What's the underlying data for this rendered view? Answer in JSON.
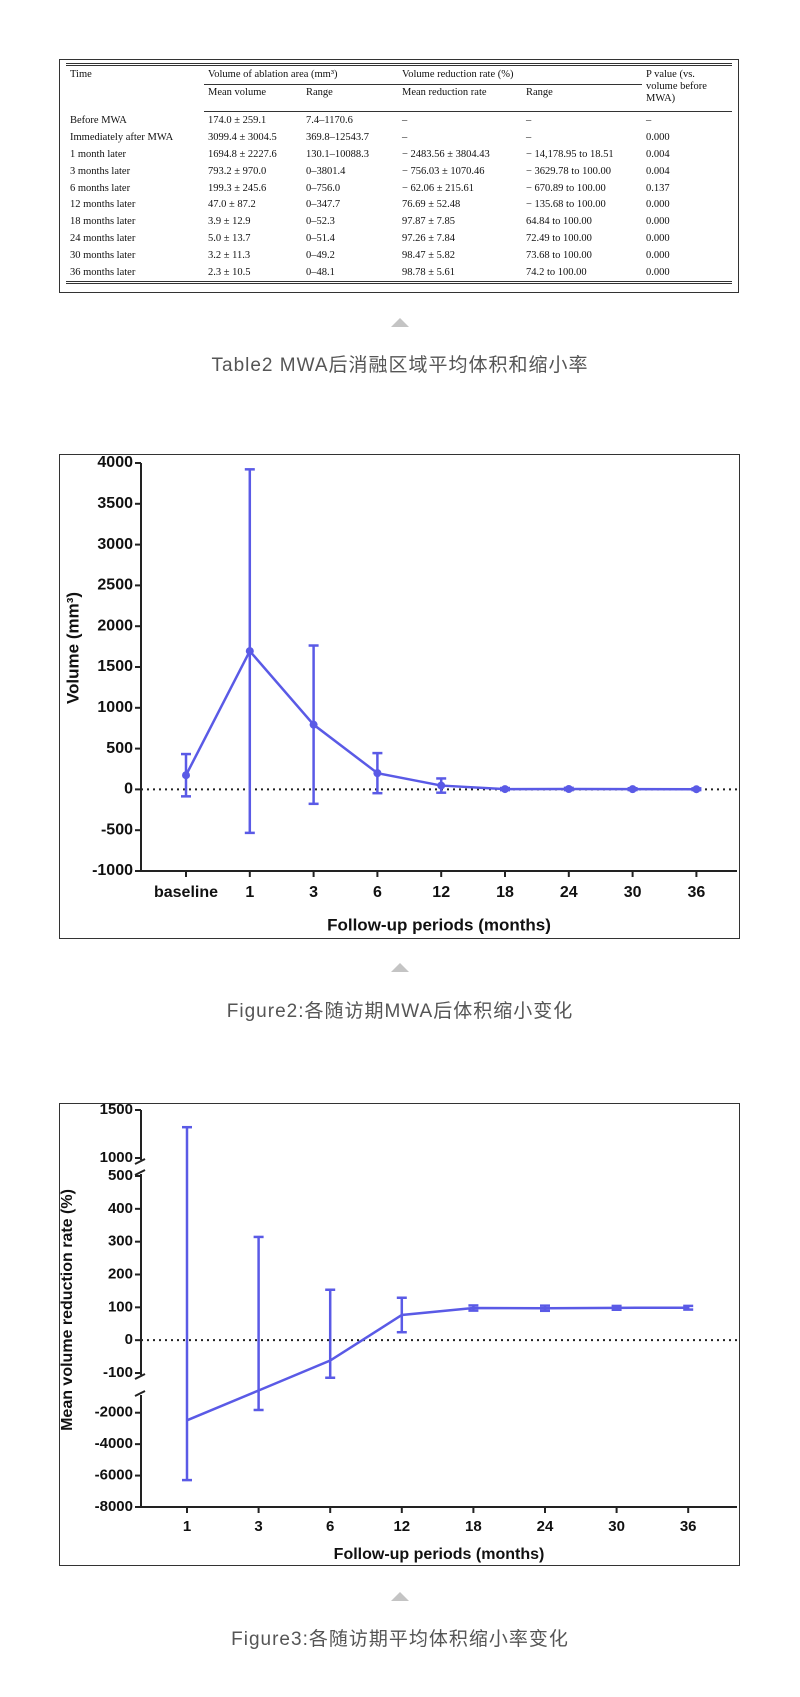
{
  "table": {
    "header": {
      "time": "Time",
      "volume_group": "Volume of ablation area (mm³)",
      "rate_group": "Volume reduction rate (%)",
      "p_value": "P value (vs. volume before MWA)"
    },
    "subheaders": [
      "Mean volume",
      "Range",
      "Mean reduction rate",
      "Range"
    ],
    "rows": [
      [
        "Before MWA",
        "174.0 ± 259.1",
        "7.4–1170.6",
        "–",
        "–",
        "–"
      ],
      [
        "Immediately after MWA",
        "3099.4 ± 3004.5",
        "369.8–12543.7",
        "–",
        "–",
        "0.000"
      ],
      [
        "1 month later",
        "1694.8 ± 2227.6",
        "130.1–10088.3",
        "− 2483.56 ± 3804.43",
        "− 14,178.95 to 18.51",
        "0.004"
      ],
      [
        "3 months later",
        "793.2 ± 970.0",
        "0–3801.4",
        "− 756.03 ± 1070.46",
        "− 3629.78 to 100.00",
        "0.004"
      ],
      [
        "6 months later",
        "199.3 ± 245.6",
        "0–756.0",
        "− 62.06 ± 215.61",
        "− 670.89 to 100.00",
        "0.137"
      ],
      [
        "12 months later",
        "47.0 ± 87.2",
        "0–347.7",
        "76.69 ± 52.48",
        "− 135.68 to 100.00",
        "0.000"
      ],
      [
        "18 months later",
        "3.9 ± 12.9",
        "0–52.3",
        "97.87 ± 7.85",
        "64.84 to 100.00",
        "0.000"
      ],
      [
        "24 months later",
        "5.0 ± 13.7",
        "0–51.4",
        "97.26 ± 7.84",
        "72.49 to 100.00",
        "0.000"
      ],
      [
        "30 months later",
        "3.2 ± 11.3",
        "0–49.2",
        "98.47 ± 5.82",
        "73.68 to 100.00",
        "0.000"
      ],
      [
        "36 months later",
        "2.3 ± 10.5",
        "0–48.1",
        "98.78 ± 5.61",
        "74.2 to 100.00",
        "0.000"
      ]
    ]
  },
  "captions": [
    "Table2 MWA后消融区域平均体积和缩小率",
    "Figure2:各随访期MWA后体积缩小变化",
    "Figure3:各随访期平均体积缩小率变化"
  ],
  "chart_data": [
    {
      "type": "line",
      "x_label": "Follow-up periods (months)",
      "y_label": "Volume (mm³)",
      "categories": [
        "baseline",
        "1",
        "3",
        "6",
        "12",
        "18",
        "24",
        "30",
        "36"
      ],
      "series": [
        {
          "color": "#5a5ae6",
          "values": [
            174.0,
            1694.8,
            793.2,
            199.3,
            47.0,
            3.9,
            5.0,
            3.2,
            2.3
          ],
          "errors": [
            259.1,
            2227.6,
            970.0,
            245.6,
            87.2,
            12.9,
            13.7,
            11.3,
            10.5
          ]
        }
      ],
      "ylim": [
        -1000,
        4000
      ],
      "yticks": [
        -1000,
        -500,
        0,
        500,
        1000,
        1500,
        2000,
        2500,
        3000,
        3500,
        4000
      ],
      "zero_line": true,
      "markers": true
    },
    {
      "type": "line",
      "x_label": "Follow-up periods (months)",
      "y_label": "Mean volume reduction rate (%)",
      "categories": [
        "1",
        "3",
        "6",
        "12",
        "18",
        "24",
        "30",
        "36"
      ],
      "series": [
        {
          "color": "#5a5ae6",
          "values": [
            -2483.56,
            -756.03,
            -62.06,
            76.69,
            97.87,
            97.26,
            98.47,
            98.78
          ],
          "errors": [
            3804.43,
            1070.46,
            215.61,
            52.48,
            7.85,
            7.84,
            5.82,
            5.61
          ]
        }
      ],
      "y_segments": [
        {
          "ylim": [
            -8000,
            -1000
          ],
          "yticks": [
            -8000,
            -6000,
            -4000,
            -2000
          ]
        },
        {
          "ylim": [
            -100,
            500
          ],
          "yticks": [
            -100,
            0,
            100,
            200,
            300,
            400,
            500
          ]
        },
        {
          "ylim": [
            1000,
            1500
          ],
          "yticks": [
            1000,
            1500
          ]
        }
      ],
      "zero_line": true,
      "markers": false
    }
  ]
}
